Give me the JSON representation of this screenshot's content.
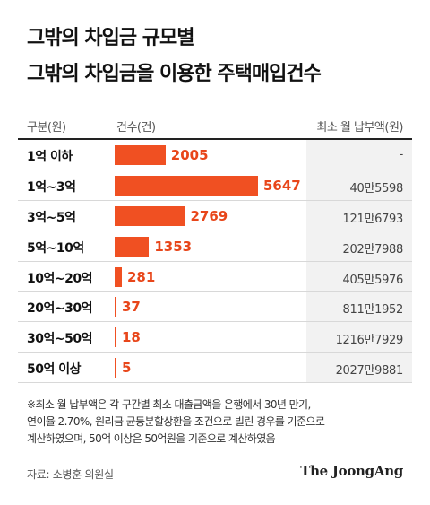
{
  "title": {
    "line1": "그밖의 차입금 규모별",
    "line2": "그밖의 차입금을 이용한 주택매입건수"
  },
  "header": {
    "category": "구분(원)",
    "count": "건수(건)",
    "payment": "최소 월 납부액(원)"
  },
  "chart_data": {
    "type": "bar",
    "orientation": "horizontal",
    "categories": [
      "1억 이하",
      "1억~3억",
      "3억~5억",
      "5억~10억",
      "10억~20억",
      "20억~30억",
      "30억~50억",
      "50억 이상"
    ],
    "values": [
      2005,
      5647,
      2769,
      1353,
      281,
      37,
      18,
      5
    ],
    "min_monthly_payment": [
      "-",
      "40만5598",
      "121만6793",
      "202만7988",
      "405만5976",
      "811만1952",
      "1216만7929",
      "2027만9881"
    ],
    "bar_color": "#f05022",
    "value_color": "#e8461a",
    "xlim": [
      0,
      5647
    ]
  },
  "notes": [
    "※최소 월 납부액은 각 구간별 최소 대출금액을 은행에서 30년 만기,",
    "연이율 2.70%, 원리금 균등분할상환을 조건으로 빌린 경우를 기준으로",
    "계산하였으며, 50억 이상은 50억원을 기준으로 계산하였음"
  ],
  "source": "자료: 소병훈 의원실",
  "brand": "The JoongAng"
}
